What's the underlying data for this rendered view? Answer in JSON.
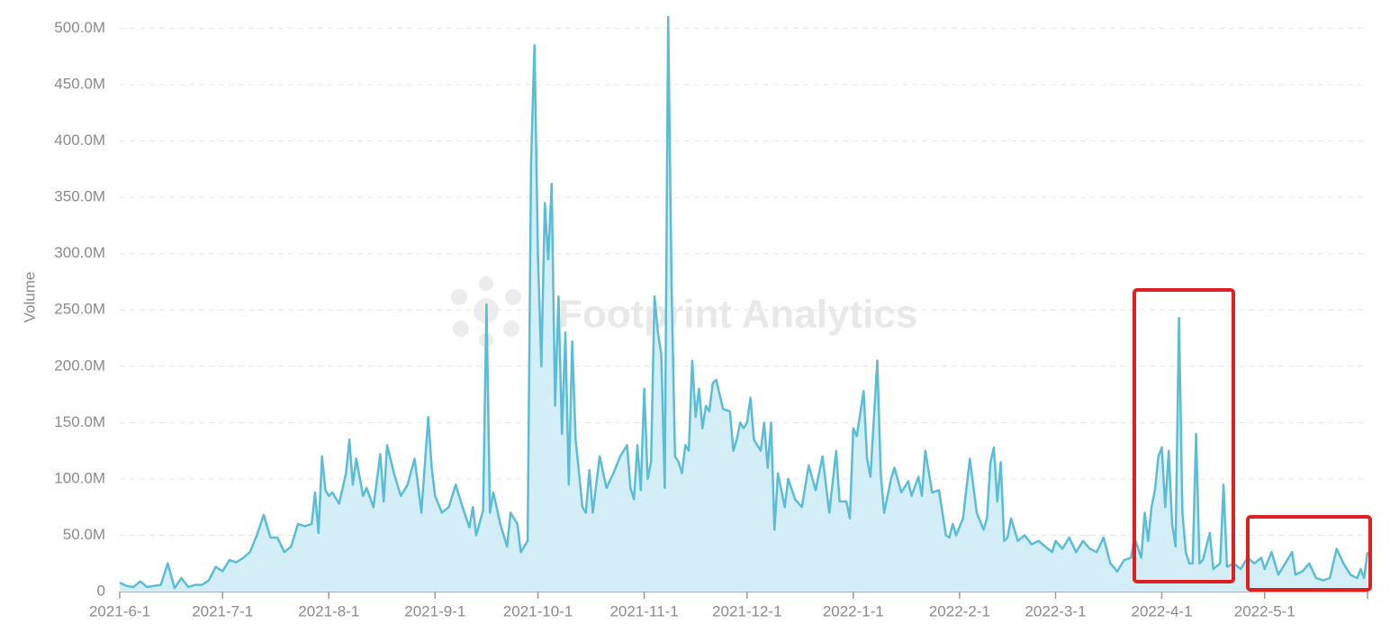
{
  "chart_data": {
    "type": "area",
    "y_axis_label": "Volume",
    "watermark": "Footprint Analytics",
    "color": "#5bbcd6",
    "fill": "#d3eef6",
    "grid": true,
    "xlim": [
      "2021-6-1",
      "2022-5-31"
    ],
    "xticks": [
      "2021-6-1",
      "2021-7-1",
      "2021-8-1",
      "2021-9-1",
      "2021-10-1",
      "2021-11-1",
      "2021-12-1",
      "2022-1-1",
      "2022-2-1",
      "2022-3-1",
      "2022-4-1",
      "2022-5-1"
    ],
    "ylim": [
      0,
      510
    ],
    "yticks": [
      0,
      {
        "value": 50,
        "label": "50.0M"
      },
      {
        "value": 100,
        "label": "100.0M"
      },
      {
        "value": 150,
        "label": "150.0M"
      },
      {
        "value": 200,
        "label": "200.0M"
      },
      {
        "value": 250,
        "label": "250.0M"
      },
      {
        "value": 300,
        "label": "300.0M"
      },
      {
        "value": 350,
        "label": "350.0M"
      },
      {
        "value": 400,
        "label": "400.0M"
      },
      {
        "value": 450,
        "label": "450.0M"
      },
      {
        "value": 500,
        "label": "500.0M"
      }
    ],
    "x": [
      "2021-6-1",
      "2021-6-3",
      "2021-6-5",
      "2021-6-7",
      "2021-6-9",
      "2021-6-11",
      "2021-6-13",
      "2021-6-15",
      "2021-6-17",
      "2021-6-19",
      "2021-6-21",
      "2021-6-23",
      "2021-6-25",
      "2021-6-27",
      "2021-6-29",
      "2021-7-1",
      "2021-7-3",
      "2021-7-5",
      "2021-7-7",
      "2021-7-9",
      "2021-7-11",
      "2021-7-13",
      "2021-7-15",
      "2021-7-17",
      "2021-7-19",
      "2021-7-21",
      "2021-7-23",
      "2021-7-25",
      "2021-7-27",
      "2021-7-28",
      "2021-7-29",
      "2021-7-30",
      "2021-7-31",
      "2021-8-1",
      "2021-8-2",
      "2021-8-4",
      "2021-8-6",
      "2021-8-7",
      "2021-8-8",
      "2021-8-9",
      "2021-8-11",
      "2021-8-12",
      "2021-8-14",
      "2021-8-16",
      "2021-8-17",
      "2021-8-18",
      "2021-8-20",
      "2021-8-22",
      "2021-8-24",
      "2021-8-26",
      "2021-8-27",
      "2021-8-28",
      "2021-8-30",
      "2021-8-31",
      "2021-9-1",
      "2021-9-3",
      "2021-9-5",
      "2021-9-7",
      "2021-9-9",
      "2021-9-11",
      "2021-9-12",
      "2021-9-13",
      "2021-9-15",
      "2021-9-16",
      "2021-9-17",
      "2021-9-18",
      "2021-9-20",
      "2021-9-22",
      "2021-9-23",
      "2021-9-25",
      "2021-9-26",
      "2021-9-28",
      "2021-9-29",
      "2021-9-30",
      "2021-10-1",
      "2021-10-2",
      "2021-10-3",
      "2021-10-4",
      "2021-10-5",
      "2021-10-6",
      "2021-10-7",
      "2021-10-8",
      "2021-10-9",
      "2021-10-10",
      "2021-10-11",
      "2021-10-12",
      "2021-10-14",
      "2021-10-15",
      "2021-10-16",
      "2021-10-17",
      "2021-10-19",
      "2021-10-21",
      "2021-10-23",
      "2021-10-25",
      "2021-10-27",
      "2021-10-28",
      "2021-10-29",
      "2021-10-30",
      "2021-10-31",
      "2021-11-1",
      "2021-11-2",
      "2021-11-3",
      "2021-11-4",
      "2021-11-5",
      "2021-11-6",
      "2021-11-7",
      "2021-11-8",
      "2021-11-9",
      "2021-11-10",
      "2021-11-11",
      "2021-11-12",
      "2021-11-13",
      "2021-11-14",
      "2021-11-15",
      "2021-11-16",
      "2021-11-17",
      "2021-11-18",
      "2021-11-19",
      "2021-11-20",
      "2021-11-21",
      "2021-11-22",
      "2021-11-24",
      "2021-11-26",
      "2021-11-27",
      "2021-11-28",
      "2021-11-29",
      "2021-11-30",
      "2021-12-1",
      "2021-12-2",
      "2021-12-3",
      "2021-12-5",
      "2021-12-6",
      "2021-12-7",
      "2021-12-8",
      "2021-12-9",
      "2021-12-10",
      "2021-12-12",
      "2021-12-13",
      "2021-12-15",
      "2021-12-17",
      "2021-12-19",
      "2021-12-21",
      "2021-12-23",
      "2021-12-25",
      "2021-12-27",
      "2021-12-28",
      "2021-12-30",
      "2021-12-31",
      "2022-1-1",
      "2022-1-2",
      "2022-1-4",
      "2022-1-5",
      "2022-1-6",
      "2022-1-8",
      "2022-1-9",
      "2022-1-10",
      "2022-1-12",
      "2022-1-13",
      "2022-1-15",
      "2022-1-17",
      "2022-1-18",
      "2022-1-20",
      "2022-1-21",
      "2022-1-22",
      "2022-1-24",
      "2022-1-26",
      "2022-1-28",
      "2022-1-29",
      "2022-1-30",
      "2022-1-31",
      "2022-2-2",
      "2022-2-4",
      "2022-2-6",
      "2022-2-8",
      "2022-2-9",
      "2022-2-10",
      "2022-2-11",
      "2022-2-12",
      "2022-2-13",
      "2022-2-14",
      "2022-2-15",
      "2022-2-16",
      "2022-2-18",
      "2022-2-20",
      "2022-2-22",
      "2022-2-24",
      "2022-2-26",
      "2022-2-28",
      "2022-3-1",
      "2022-3-3",
      "2022-3-5",
      "2022-3-7",
      "2022-3-9",
      "2022-3-11",
      "2022-3-13",
      "2022-3-15",
      "2022-3-17",
      "2022-3-19",
      "2022-3-21",
      "2022-3-23",
      "2022-3-24",
      "2022-3-26",
      "2022-3-27",
      "2022-3-28",
      "2022-3-29",
      "2022-3-30",
      "2022-3-31",
      "2022-4-1",
      "2022-4-2",
      "2022-4-3",
      "2022-4-4",
      "2022-4-5",
      "2022-4-6",
      "2022-4-7",
      "2022-4-8",
      "2022-4-9",
      "2022-4-10",
      "2022-4-11",
      "2022-4-12",
      "2022-4-13",
      "2022-4-15",
      "2022-4-16",
      "2022-4-18",
      "2022-4-19",
      "2022-4-20",
      "2022-4-22",
      "2022-4-24",
      "2022-4-26",
      "2022-4-28",
      "2022-4-30",
      "2022-5-1",
      "2022-5-3",
      "2022-5-5",
      "2022-5-7",
      "2022-5-9",
      "2022-5-10",
      "2022-5-12",
      "2022-5-14",
      "2022-5-16",
      "2022-5-18",
      "2022-5-20",
      "2022-5-22",
      "2022-5-24",
      "2022-5-26",
      "2022-5-28",
      "2022-5-29",
      "2022-5-30",
      "2022-5-31"
    ],
    "values": [
      8,
      5,
      4,
      9,
      4,
      5,
      6,
      25,
      3,
      12,
      4,
      6,
      6,
      10,
      22,
      18,
      28,
      26,
      30,
      35,
      50,
      68,
      48,
      48,
      35,
      40,
      60,
      58,
      60,
      88,
      52,
      120,
      90,
      85,
      88,
      78,
      105,
      135,
      95,
      118,
      85,
      92,
      75,
      122,
      80,
      130,
      105,
      85,
      95,
      118,
      95,
      70,
      155,
      110,
      85,
      70,
      75,
      95,
      75,
      57,
      75,
      50,
      72,
      255,
      70,
      88,
      60,
      40,
      70,
      60,
      35,
      45,
      380,
      485,
      300,
      200,
      345,
      295,
      362,
      165,
      262,
      140,
      230,
      95,
      222,
      135,
      75,
      70,
      108,
      70,
      120,
      92,
      105,
      120,
      130,
      92,
      82,
      130,
      90,
      180,
      100,
      115,
      262,
      230,
      210,
      92,
      510,
      270,
      120,
      115,
      105,
      130,
      125,
      205,
      155,
      180,
      145,
      165,
      160,
      185,
      188,
      162,
      160,
      125,
      135,
      150,
      145,
      150,
      172,
      135,
      125,
      150,
      110,
      150,
      55,
      105,
      75,
      100,
      82,
      75,
      112,
      90,
      120,
      70,
      125,
      80,
      80,
      65,
      145,
      138,
      178,
      118,
      102,
      205,
      105,
      70,
      100,
      110,
      88,
      98,
      85,
      102,
      85,
      125,
      88,
      90,
      50,
      48,
      60,
      50,
      65,
      118,
      70,
      55,
      65,
      115,
      128,
      80,
      115,
      45,
      48,
      65,
      45,
      50,
      42,
      45,
      40,
      35,
      45,
      38,
      48,
      35,
      45,
      38,
      35,
      48,
      25,
      18,
      28,
      30,
      48,
      30,
      70,
      45,
      75,
      90,
      120,
      128,
      75,
      125,
      60,
      40,
      243,
      70,
      35,
      25,
      25,
      140,
      25,
      28,
      52,
      20,
      25,
      95,
      22,
      25,
      20,
      30,
      25,
      30,
      20,
      35,
      15,
      25,
      35,
      15,
      18,
      25,
      12,
      10,
      12,
      38,
      25,
      15,
      12,
      20,
      12,
      35
    ]
  }
}
